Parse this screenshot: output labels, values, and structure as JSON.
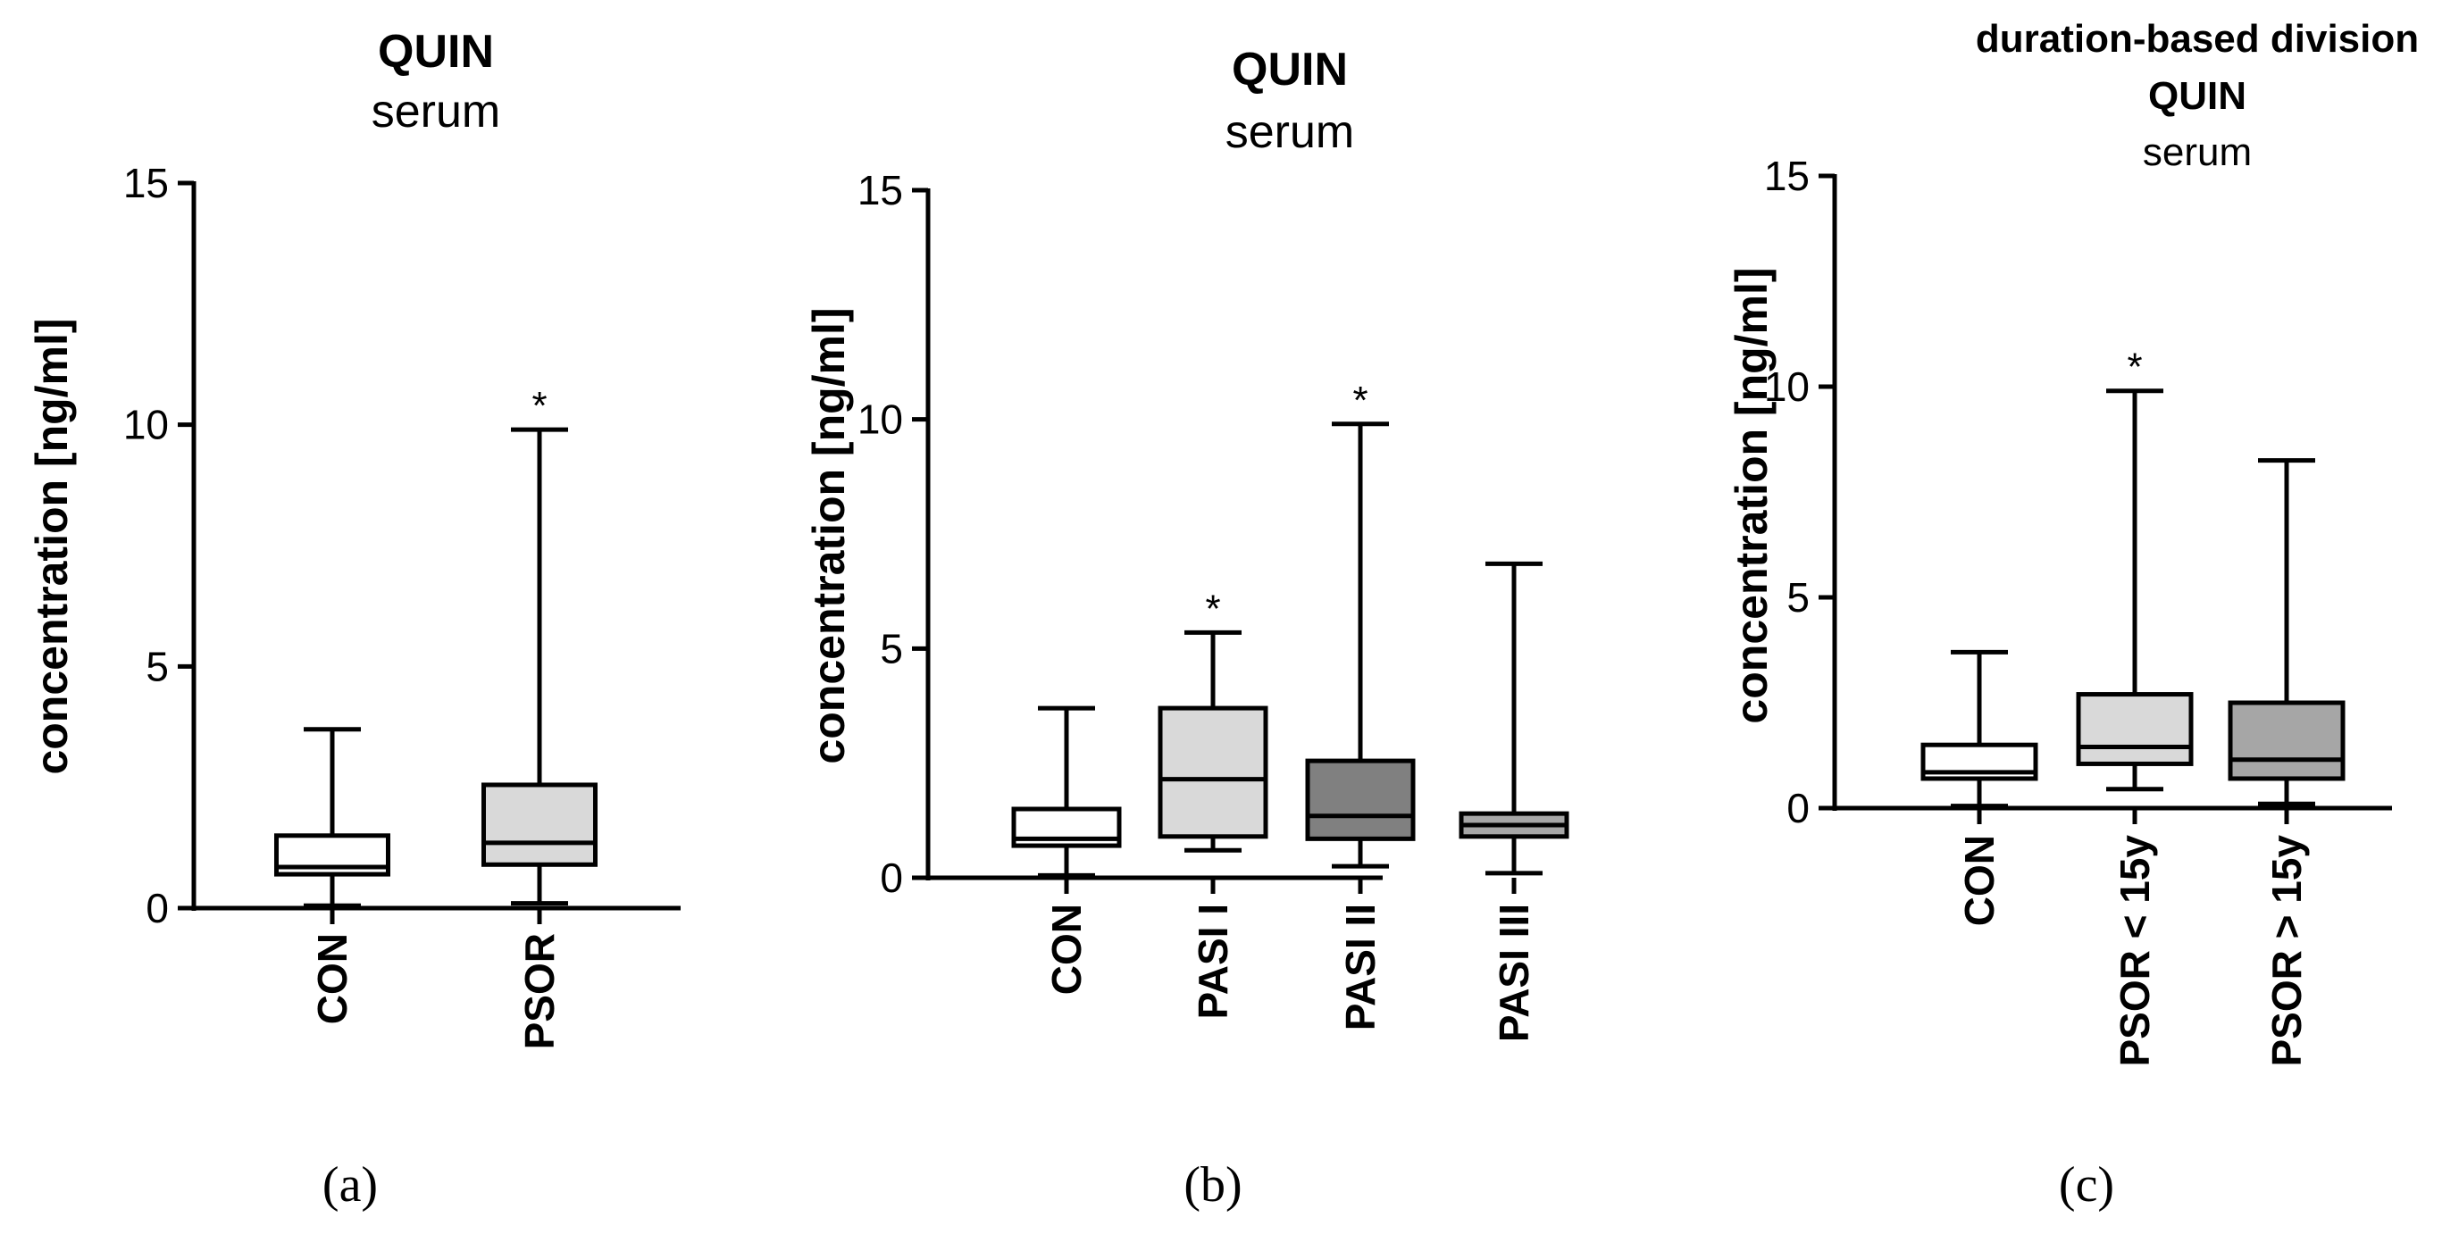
{
  "chart_data": [
    {
      "type": "box",
      "title": "QUIN",
      "subtitle": "serum",
      "ylabel": "concentration [ng/ml]",
      "ylim": [
        0,
        15
      ],
      "yticks": [
        "0",
        "5",
        "10",
        "15"
      ],
      "categories": [
        "CON",
        "PSOR"
      ],
      "boxes": [
        {
          "min": 0.05,
          "q1": 0.7,
          "median": 0.85,
          "q3": 1.5,
          "max": 3.7,
          "fill": "#ffffff",
          "mark": ""
        },
        {
          "min": 0.1,
          "q1": 0.9,
          "median": 1.35,
          "q3": 2.55,
          "max": 9.9,
          "fill": "#d9d9d9",
          "mark": "*"
        }
      ],
      "panel_label": "(a)"
    },
    {
      "type": "box",
      "title": "QUIN",
      "subtitle": "serum",
      "ylabel": "concentration [ng/ml]",
      "ylim": [
        0,
        15
      ],
      "yticks": [
        "0",
        "5",
        "10",
        "15"
      ],
      "categories": [
        "CON",
        "PASI I",
        "PASI II",
        "PASI III"
      ],
      "boxes": [
        {
          "min": 0.05,
          "q1": 0.7,
          "median": 0.85,
          "q3": 1.5,
          "max": 3.7,
          "fill": "#ffffff",
          "mark": ""
        },
        {
          "min": 0.6,
          "q1": 0.9,
          "median": 2.15,
          "q3": 3.7,
          "max": 5.35,
          "fill": "#d9d9d9",
          "mark": "*"
        },
        {
          "min": 0.25,
          "q1": 0.85,
          "median": 1.35,
          "q3": 2.55,
          "max": 9.9,
          "fill": "#808080",
          "mark": "*"
        },
        {
          "min": 0.1,
          "q1": 0.9,
          "median": 1.15,
          "q3": 1.4,
          "max": 6.85,
          "fill": "#a6a6a6",
          "mark": ""
        }
      ],
      "panel_label": "(b)"
    },
    {
      "type": "box",
      "title": "duration-based division",
      "title2": "QUIN",
      "subtitle": "serum",
      "ylabel": "concentration [ng/ml]",
      "ylim": [
        0,
        15
      ],
      "yticks": [
        "0",
        "5",
        "10",
        "15"
      ],
      "categories": [
        "CON",
        "PSOR < 15y",
        "PSOR > 15y"
      ],
      "boxes": [
        {
          "min": 0.05,
          "q1": 0.7,
          "median": 0.85,
          "q3": 1.5,
          "max": 3.7,
          "fill": "#ffffff",
          "mark": ""
        },
        {
          "min": 0.45,
          "q1": 1.05,
          "median": 1.45,
          "q3": 2.7,
          "max": 9.9,
          "fill": "#d9d9d9",
          "mark": "*"
        },
        {
          "min": 0.1,
          "q1": 0.7,
          "median": 1.15,
          "q3": 2.5,
          "max": 8.25,
          "fill": "#a6a6a6",
          "mark": ""
        }
      ],
      "panel_label": "(c)"
    }
  ]
}
